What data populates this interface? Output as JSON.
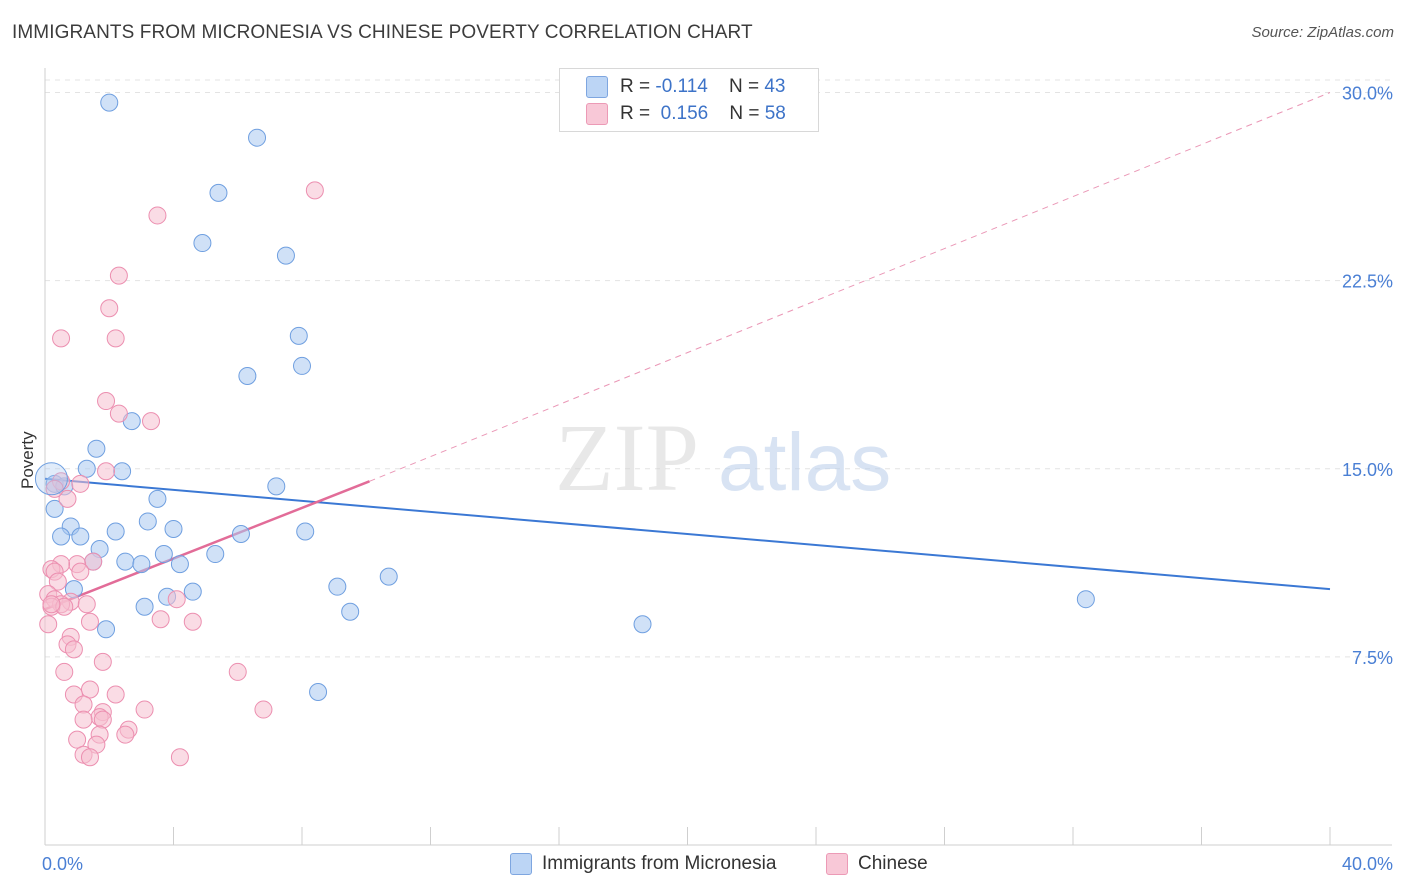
{
  "title": "IMMIGRANTS FROM MICRONESIA VS CHINESE POVERTY CORRELATION CHART",
  "source": "Source: ZipAtlas.com",
  "watermark": {
    "zip": "ZIP",
    "atlas": "atlas"
  },
  "colors": {
    "blue": "#a9c8f0",
    "blue_stroke": "#6f9fe0",
    "blue_line": "#3b78d4",
    "pink": "#f6bfd0",
    "pink_stroke": "#ec8fb0",
    "pink_line": "#e26c98",
    "axis_text": "#4a7fd4",
    "grid": "#e3e3e3"
  },
  "legend": {
    "rows": [
      {
        "r_label": "R = ",
        "r_value": "-0.114",
        "n_label": "N = ",
        "n_value": "43"
      },
      {
        "r_label": "R = ",
        "r_value": " 0.156",
        "n_label": "N = ",
        "n_value": "58"
      }
    ]
  },
  "chart_data": {
    "type": "scatter",
    "title": "IMMIGRANTS FROM MICRONESIA VS CHINESE POVERTY CORRELATION CHART",
    "xlabel": "",
    "ylabel": "Poverty",
    "xlim": [
      0,
      40
    ],
    "ylim": [
      0,
      30.5
    ],
    "x_tick_labels": {
      "left": "0.0%",
      "right": "40.0%"
    },
    "y_ticks": [
      7.5,
      15.0,
      22.5,
      30.0
    ],
    "y_tick_labels": [
      "7.5%",
      "15.0%",
      "22.5%",
      "30.0%"
    ],
    "grid": true,
    "series": [
      {
        "name": "Immigrants from Micronesia",
        "R": -0.114,
        "N": 43,
        "trend": {
          "x0": 0,
          "y0": 14.6,
          "x1": 40,
          "y1": 10.2
        },
        "points": [
          [
            2.0,
            29.6
          ],
          [
            6.6,
            28.2
          ],
          [
            5.4,
            26.0
          ],
          [
            4.9,
            24.0
          ],
          [
            7.5,
            23.5
          ],
          [
            7.9,
            20.3
          ],
          [
            8.0,
            19.1
          ],
          [
            6.3,
            18.7
          ],
          [
            2.7,
            16.9
          ],
          [
            1.6,
            15.8
          ],
          [
            1.3,
            15.0
          ],
          [
            2.4,
            14.9
          ],
          [
            0.3,
            14.4
          ],
          [
            0.6,
            14.3
          ],
          [
            7.2,
            14.3
          ],
          [
            3.5,
            13.8
          ],
          [
            0.3,
            13.4
          ],
          [
            3.2,
            12.9
          ],
          [
            0.8,
            12.7
          ],
          [
            4.0,
            12.6
          ],
          [
            2.2,
            12.5
          ],
          [
            6.1,
            12.4
          ],
          [
            8.1,
            12.5
          ],
          [
            0.5,
            12.3
          ],
          [
            1.1,
            12.3
          ],
          [
            1.7,
            11.8
          ],
          [
            5.3,
            11.6
          ],
          [
            3.7,
            11.6
          ],
          [
            2.5,
            11.3
          ],
          [
            3.0,
            11.2
          ],
          [
            4.2,
            11.2
          ],
          [
            1.5,
            11.3
          ],
          [
            10.7,
            10.7
          ],
          [
            9.1,
            10.3
          ],
          [
            0.9,
            10.2
          ],
          [
            4.6,
            10.1
          ],
          [
            3.8,
            9.9
          ],
          [
            3.1,
            9.5
          ],
          [
            9.5,
            9.3
          ],
          [
            32.4,
            9.8
          ],
          [
            18.6,
            8.8
          ],
          [
            1.9,
            8.6
          ],
          [
            8.5,
            6.1
          ]
        ]
      },
      {
        "name": "Chinese",
        "R": 0.156,
        "N": 58,
        "trend": {
          "x0": 0,
          "y0": 9.4,
          "x1": 10.1,
          "y1": 14.5,
          "dash_x1": 40,
          "dash_y1": 30.0
        },
        "points": [
          [
            8.4,
            26.1
          ],
          [
            3.5,
            25.1
          ],
          [
            2.3,
            22.7
          ],
          [
            2.0,
            21.4
          ],
          [
            0.5,
            20.2
          ],
          [
            2.2,
            20.2
          ],
          [
            1.9,
            17.7
          ],
          [
            2.3,
            17.2
          ],
          [
            3.3,
            16.9
          ],
          [
            1.9,
            14.9
          ],
          [
            0.5,
            14.5
          ],
          [
            1.1,
            14.4
          ],
          [
            0.7,
            13.8
          ],
          [
            0.3,
            14.2
          ],
          [
            1.5,
            11.3
          ],
          [
            1.0,
            11.2
          ],
          [
            0.5,
            11.2
          ],
          [
            0.2,
            11.0
          ],
          [
            0.3,
            10.9
          ],
          [
            1.1,
            10.9
          ],
          [
            0.4,
            10.5
          ],
          [
            0.1,
            10.0
          ],
          [
            0.3,
            9.8
          ],
          [
            0.8,
            9.7
          ],
          [
            0.5,
            9.6
          ],
          [
            0.2,
            9.5
          ],
          [
            4.1,
            9.8
          ],
          [
            1.4,
            8.9
          ],
          [
            3.6,
            9.0
          ],
          [
            4.6,
            8.9
          ],
          [
            0.1,
            8.8
          ],
          [
            0.8,
            8.3
          ],
          [
            0.7,
            8.0
          ],
          [
            0.9,
            7.8
          ],
          [
            1.8,
            7.3
          ],
          [
            0.6,
            6.9
          ],
          [
            6.0,
            6.9
          ],
          [
            1.4,
            6.2
          ],
          [
            0.9,
            6.0
          ],
          [
            2.2,
            6.0
          ],
          [
            1.2,
            5.6
          ],
          [
            3.1,
            5.4
          ],
          [
            6.8,
            5.4
          ],
          [
            1.8,
            5.3
          ],
          [
            1.7,
            5.1
          ],
          [
            1.2,
            5.0
          ],
          [
            1.8,
            5.0
          ],
          [
            2.6,
            4.6
          ],
          [
            1.7,
            4.4
          ],
          [
            2.5,
            4.4
          ],
          [
            1.0,
            4.2
          ],
          [
            1.6,
            4.0
          ],
          [
            1.2,
            3.6
          ],
          [
            1.4,
            3.5
          ],
          [
            4.2,
            3.5
          ],
          [
            1.3,
            9.6
          ],
          [
            0.6,
            9.5
          ],
          [
            0.2,
            9.6
          ]
        ]
      }
    ]
  }
}
